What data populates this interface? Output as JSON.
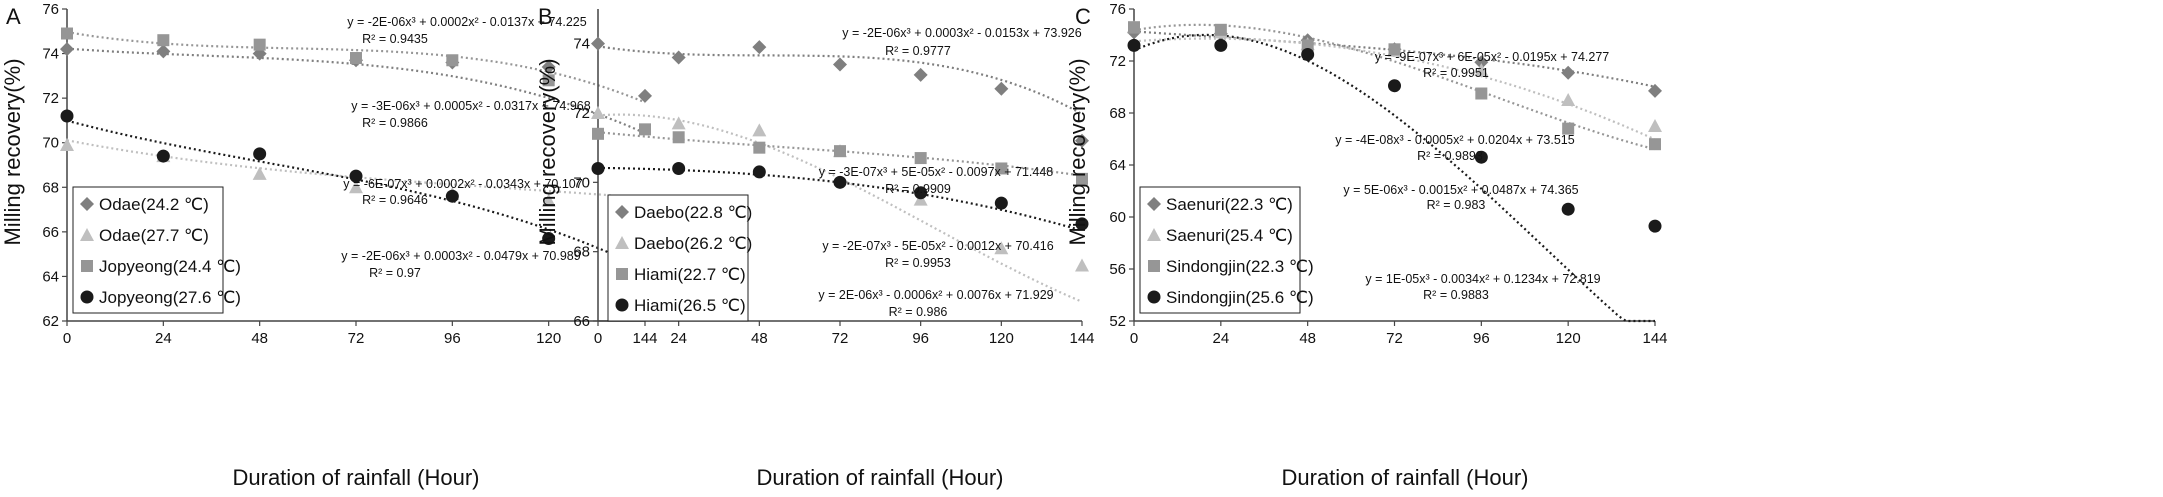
{
  "chart_data": [
    {
      "panel_label": "A",
      "type": "scatter",
      "xlabel": "Duration of rainfall (Hour)",
      "ylabel": "Milling recovery(%)",
      "x": [
        0,
        24,
        48,
        72,
        96,
        120,
        144
      ],
      "xlim": [
        0,
        144
      ],
      "ylim": [
        62,
        76
      ],
      "yticks": [
        62,
        64,
        66,
        68,
        70,
        72,
        74,
        76
      ],
      "legend_position": "bottom-left",
      "series": [
        {
          "name": "Odae(24.2 ℃)",
          "marker": "diamond",
          "color": "#7f7f7f",
          "values": [
            74.2,
            74.1,
            74.0,
            73.7,
            73.6,
            73.4,
            72.1
          ],
          "trendline": {
            "equation": "y = -2E-06x³ + 0.0002x² - 0.0137x + 74.225",
            "r2": "R² = 0.9435",
            "coef": [
              74.225,
              -0.0137,
              0.0002,
              -2e-06
            ]
          }
        },
        {
          "name": "Odae(27.7 ℃)",
          "marker": "triangle",
          "color": "#bfbfbf",
          "values": [
            69.9,
            69.4,
            68.6,
            68.0,
            67.7,
            67.4,
            66.3
          ],
          "trendline": {
            "equation": "y = -6E-07x³ + 0.0002x² - 0.0343x + 70.107",
            "r2": "R² = 0.9646",
            "coef": [
              70.107,
              -0.0343,
              0.0002,
              -6e-07
            ]
          }
        },
        {
          "name": "Jopyeong(24.4 ℃)",
          "marker": "square",
          "color": "#969696",
          "values": [
            74.9,
            74.6,
            74.4,
            73.8,
            73.7,
            72.8,
            70.6
          ],
          "trendline": {
            "equation": "y = -3E-06x³ + 0.0005x² - 0.0317x + 74.968",
            "r2": "R² = 0.9866",
            "coef": [
              74.968,
              -0.0317,
              0.0005,
              -3e-06
            ]
          }
        },
        {
          "name": "Jopyeong(27.6 ℃)",
          "marker": "circle",
          "color": "#1a1a1a",
          "values": [
            71.2,
            69.4,
            69.5,
            68.5,
            67.6,
            65.7,
            64.8
          ],
          "trendline": {
            "equation": "y = -2E-06x³ + 0.0003x² - 0.0479x + 70.989",
            "r2": "R² = 0.97",
            "coef": [
              70.989,
              -0.0479,
              0.0003,
              -2e-06
            ]
          }
        }
      ]
    },
    {
      "panel_label": "B",
      "type": "scatter",
      "xlabel": "Duration of rainfall (Hour)",
      "ylabel": "Milling recovery(%)",
      "x": [
        0,
        24,
        48,
        72,
        96,
        120,
        144
      ],
      "xlim": [
        0,
        144
      ],
      "ylim": [
        66,
        75
      ],
      "yticks": [
        66,
        68,
        70,
        72,
        74
      ],
      "legend_position": "bottom-left",
      "series": [
        {
          "name": "Daebo(22.8 ℃)",
          "marker": "diamond",
          "color": "#7f7f7f",
          "values": [
            74.0,
            73.6,
            73.9,
            73.4,
            73.1,
            72.7,
            71.2
          ],
          "trendline": {
            "equation": "y = -2E-06x³ + 0.0003x² - 0.0153x + 73.926",
            "r2": "R² = 0.9777",
            "coef": [
              73.926,
              -0.0153,
              0.0003,
              -2e-06
            ]
          }
        },
        {
          "name": "Daebo(26.2 ℃)",
          "marker": "triangle",
          "color": "#bfbfbf",
          "values": [
            72.0,
            71.7,
            71.5,
            70.9,
            69.5,
            68.1,
            67.6
          ],
          "trendline": {
            "equation": "y = 2E-06x³ - 0.0006x² + 0.0076x + 71.929",
            "r2": "R² = 0.986",
            "coef": [
              71.929,
              0.0076,
              -0.0006,
              2e-06
            ]
          }
        },
        {
          "name": "Hiami(22.7 ℃)",
          "marker": "square",
          "color": "#969696",
          "values": [
            71.4,
            71.3,
            71.0,
            70.9,
            70.7,
            70.4,
            70.1
          ],
          "trendline": {
            "equation": "y = -3E-07x³ + 5E-05x² - 0.0097x + 71.448",
            "r2": "R² = 0.9909",
            "coef": [
              71.448,
              -0.0097,
              5e-05,
              -3e-07
            ]
          }
        },
        {
          "name": "Hiami(26.5 ℃)",
          "marker": "circle",
          "color": "#1a1a1a",
          "values": [
            70.4,
            70.4,
            70.3,
            70.0,
            69.7,
            69.4,
            68.8
          ],
          "trendline": {
            "equation": "y = -2E-07x³ - 5E-05x² - 0.0012x + 70.416",
            "r2": "R² = 0.9953",
            "coef": [
              70.416,
              -0.0012,
              -5e-05,
              -2e-07
            ]
          }
        }
      ]
    },
    {
      "panel_label": "C",
      "type": "scatter",
      "xlabel": "Duration of rainfall (Hour)",
      "ylabel": "Milling recovery(%)",
      "x": [
        0,
        24,
        48,
        72,
        96,
        120,
        144
      ],
      "xlim": [
        0,
        144
      ],
      "ylim": [
        52,
        76
      ],
      "yticks": [
        52,
        56,
        60,
        64,
        68,
        72,
        76
      ],
      "legend_position": "bottom-left",
      "series": [
        {
          "name": "Saenuri(22.3 ℃)",
          "marker": "diamond",
          "color": "#7f7f7f",
          "values": [
            74.2,
            74.1,
            73.6,
            72.9,
            71.9,
            71.1,
            69.7
          ],
          "trendline": {
            "equation": "y = -9E-07x³ + 6E-05x² - 0.0195x + 74.277",
            "r2": "R² = 0.9951",
            "coef": [
              74.277,
              -0.0195,
              6e-05,
              -9e-07
            ]
          }
        },
        {
          "name": "Saenuri(25.4 ℃)",
          "marker": "triangle",
          "color": "#bfbfbf",
          "values": [
            74.6,
            74.2,
            73.3,
            72.8,
            71.3,
            69.0,
            67.0
          ],
          "trendline": {
            "equation": "y = -4E-08x³ - 0.0005x² + 0.0204x + 73.515",
            "r2": "R² = 0.9893",
            "coef": [
              73.515,
              0.0204,
              -0.0005,
              -4e-08
            ]
          }
        },
        {
          "name": "Sindongjin(22.3 ℃)",
          "marker": "square",
          "color": "#969696",
          "values": [
            74.6,
            74.4,
            73.2,
            72.9,
            69.5,
            66.8,
            65.6
          ],
          "trendline": {
            "equation": "y = 5E-06x³ - 0.0015x² + 0.0487x + 74.365",
            "r2": "R² = 0.983",
            "coef": [
              74.365,
              0.0487,
              -0.0015,
              5e-06
            ]
          }
        },
        {
          "name": "Sindongjin(25.6 ℃)",
          "marker": "circle",
          "color": "#1a1a1a",
          "values": [
            73.2,
            73.2,
            72.5,
            70.1,
            64.6,
            60.6,
            59.3
          ],
          "trendline": {
            "equation": "y = 1E-05x³ - 0.0034x² + 0.1234x + 72.819",
            "r2": "R² = 0.9883",
            "coef": [
              72.819,
              0.1234,
              -0.0034,
              1e-05
            ]
          }
        }
      ]
    }
  ]
}
